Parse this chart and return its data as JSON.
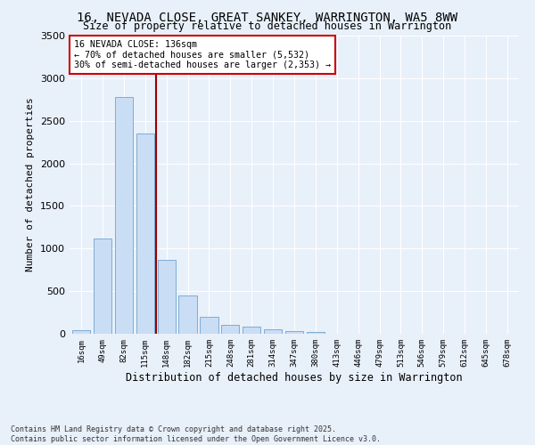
{
  "title": "16, NEVADA CLOSE, GREAT SANKEY, WARRINGTON, WA5 8WW",
  "subtitle": "Size of property relative to detached houses in Warrington",
  "xlabel": "Distribution of detached houses by size in Warrington",
  "ylabel": "Number of detached properties",
  "categories": [
    "16sqm",
    "49sqm",
    "82sqm",
    "115sqm",
    "148sqm",
    "182sqm",
    "215sqm",
    "248sqm",
    "281sqm",
    "314sqm",
    "347sqm",
    "380sqm",
    "413sqm",
    "446sqm",
    "479sqm",
    "513sqm",
    "546sqm",
    "579sqm",
    "612sqm",
    "645sqm",
    "678sqm"
  ],
  "values": [
    40,
    1120,
    2780,
    2350,
    870,
    445,
    200,
    105,
    85,
    55,
    30,
    20,
    5,
    0,
    0,
    0,
    0,
    0,
    0,
    0,
    0
  ],
  "bar_color": "#c9ddf5",
  "bar_edge_color": "#7eadd4",
  "vline_color": "#990000",
  "vline_x": 3.5,
  "annotation_title": "16 NEVADA CLOSE: 136sqm",
  "annotation_line1": "← 70% of detached houses are smaller (5,532)",
  "annotation_line2": "30% of semi-detached houses are larger (2,353) →",
  "annotation_box_color": "#cc0000",
  "ylim": [
    0,
    3500
  ],
  "yticks": [
    0,
    500,
    1000,
    1500,
    2000,
    2500,
    3000,
    3500
  ],
  "footer_line1": "Contains HM Land Registry data © Crown copyright and database right 2025.",
  "footer_line2": "Contains public sector information licensed under the Open Government Licence v3.0.",
  "bg_color": "#e8f0fa",
  "plot_bg_color": "#e8f0fa",
  "grid_color": "#ffffff"
}
